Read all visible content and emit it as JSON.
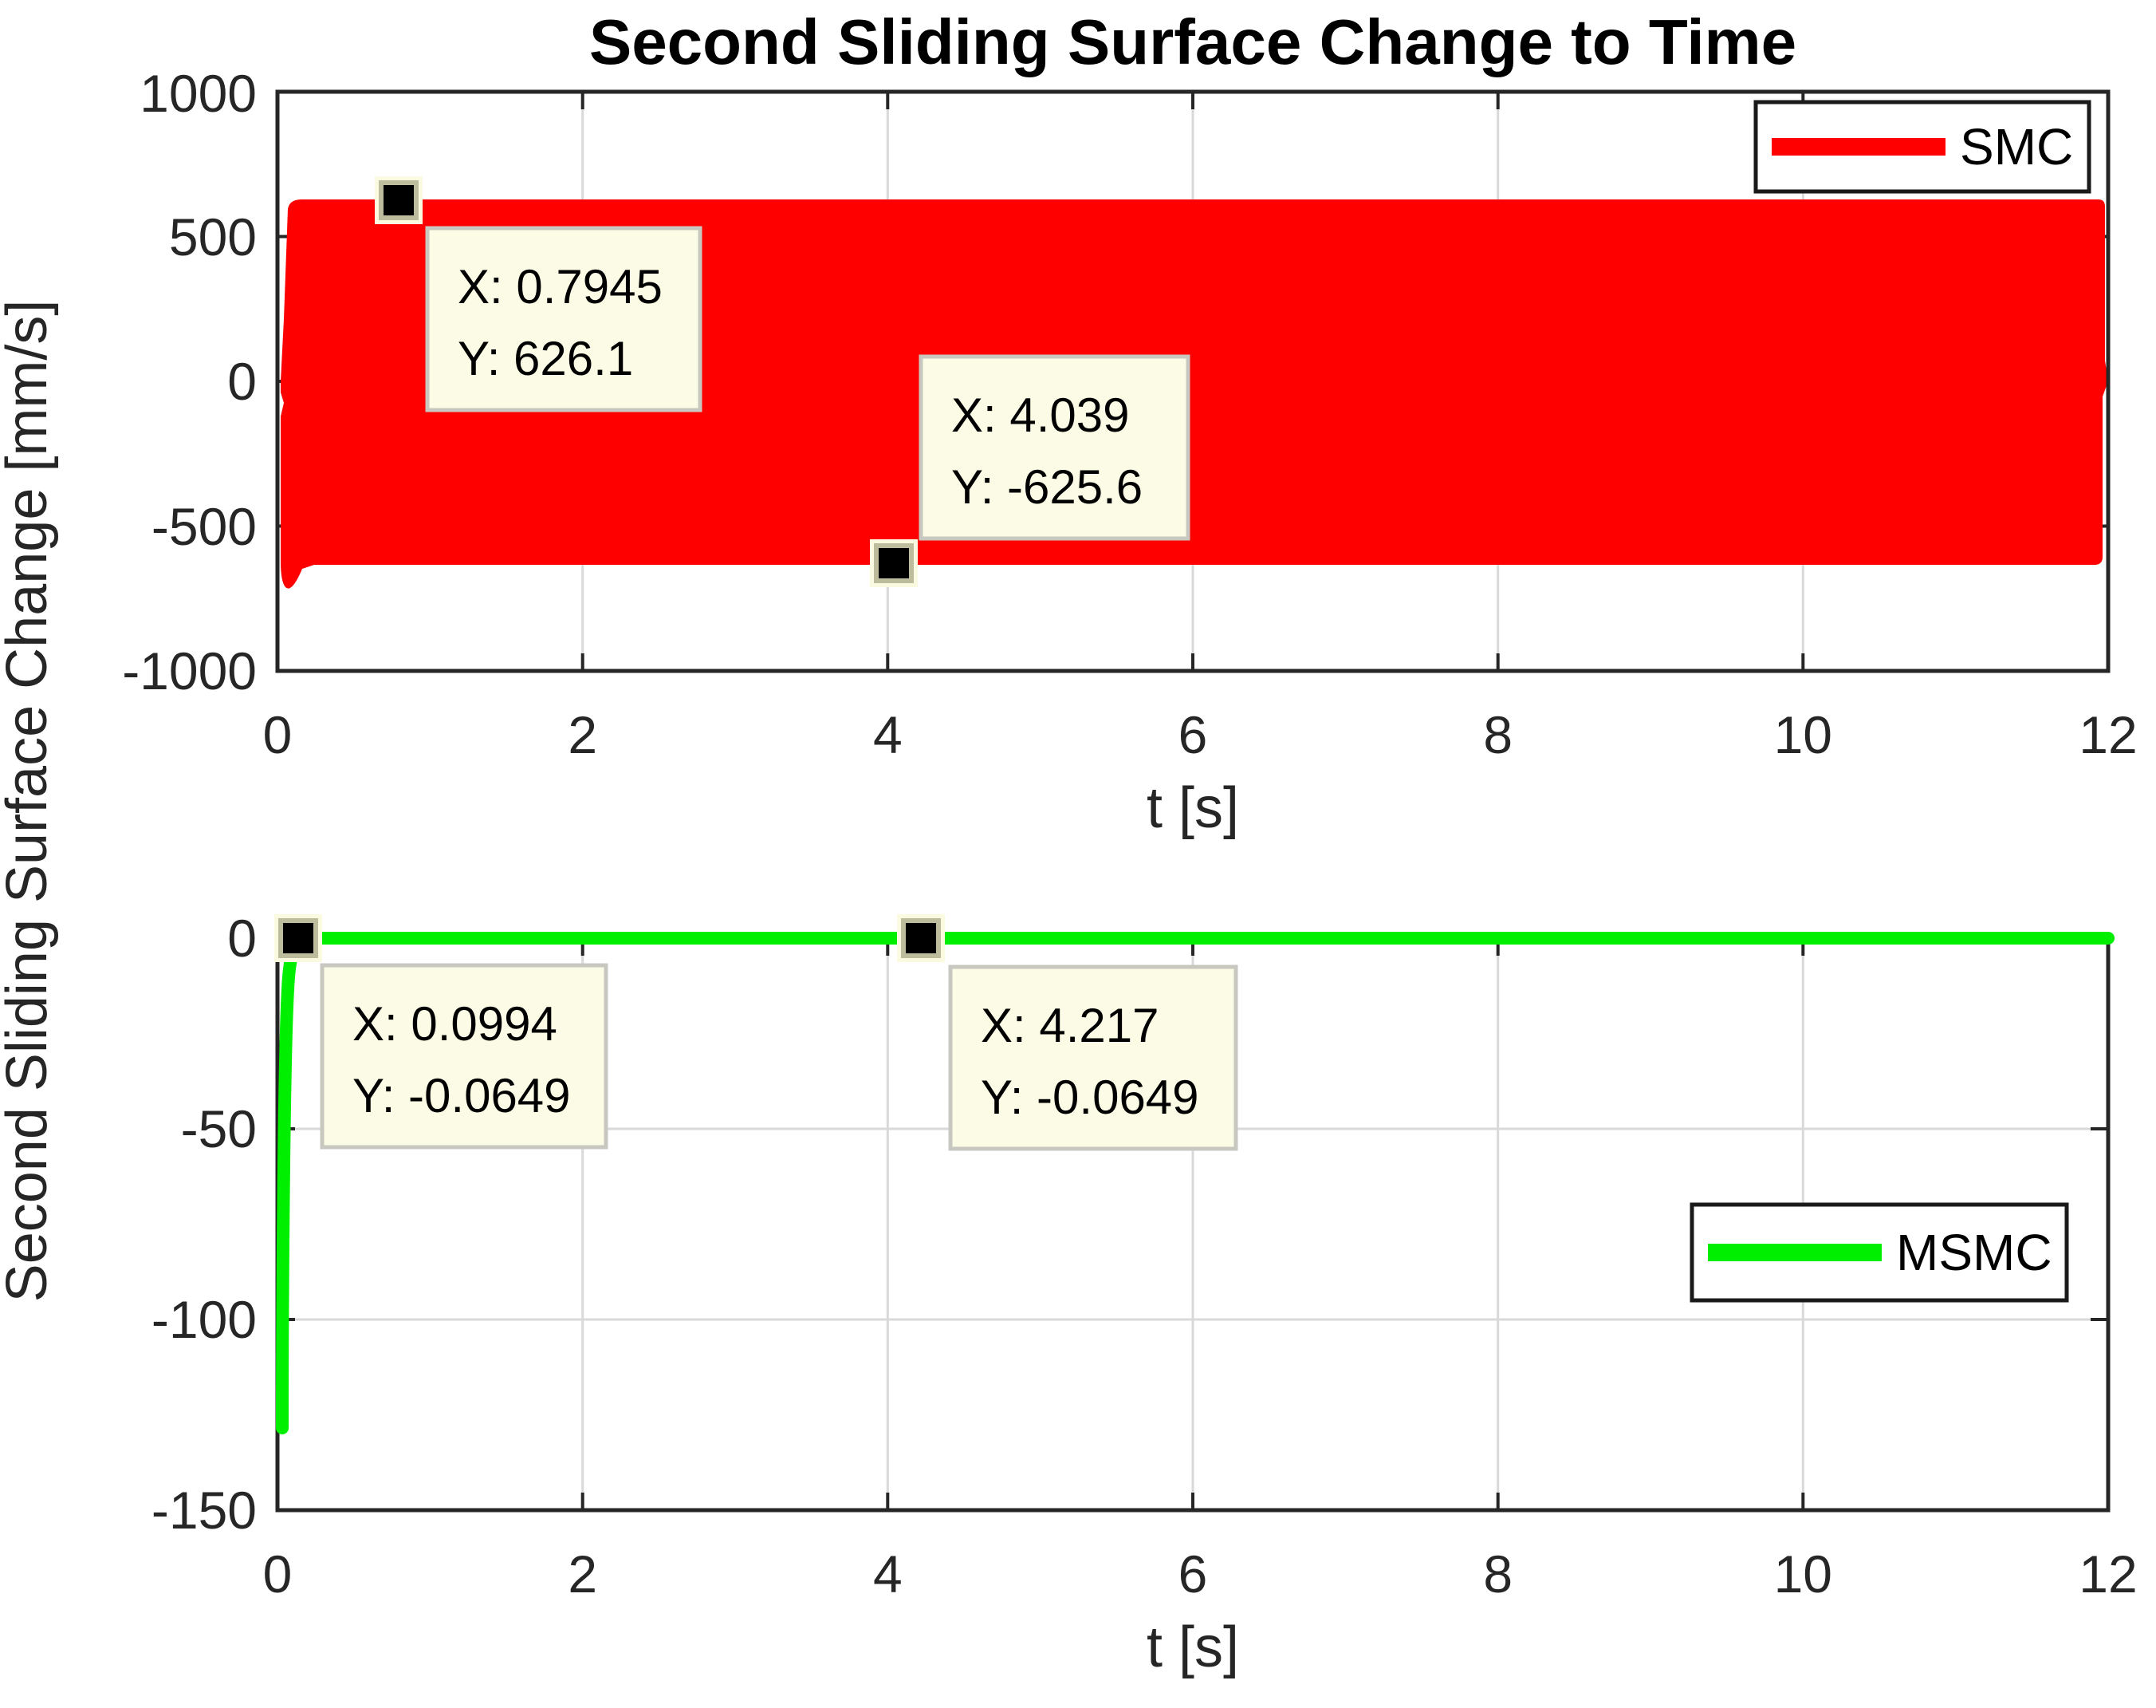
{
  "figure": {
    "title": "Second Sliding Surface Change to Time",
    "shared_ylabel": "Second Sliding Surface Change [mm/s]",
    "background": "#ffffff"
  },
  "colors": {
    "smc_red": "#ff0000",
    "msmc_green": "#00ee00",
    "axis": "#262626",
    "grid": "#d9d9d9",
    "datatip_fill": "#fcfce6",
    "datatip_border": "#c8c8c0",
    "marker_outer": "#fafae1",
    "marker_ring": "#bdbd9e",
    "marker_core": "#000000",
    "legend_border": "#1a1a1a",
    "legend_fill": "#ffffff"
  },
  "chart_data": [
    {
      "type": "area",
      "subplot": "top",
      "title": "Second Sliding Surface Change to Time",
      "xlabel": "t [s]",
      "ylabel": "Second Sliding Surface Change [mm/s]",
      "xlim": [
        0,
        12
      ],
      "ylim": [
        -1000,
        1000
      ],
      "xticks": [
        0,
        2,
        4,
        6,
        8,
        10,
        12
      ],
      "yticks": [
        1000,
        500,
        0,
        -500,
        -1000
      ],
      "grid": true,
      "legend": {
        "entries": [
          "SMC"
        ],
        "position": "northeast",
        "color": "#ff0000"
      },
      "series": [
        {
          "name": "SMC",
          "color": "#ff0000",
          "description": "high-frequency chattering signal filling a band",
          "band_upper": 628,
          "band_lower": -628,
          "start_value": 0,
          "initial_overshoot": -700,
          "x_start": 0.02,
          "x_end": 12,
          "end_value": 0
        }
      ],
      "datatips": [
        {
          "x": 0.7945,
          "y": 626.1
        },
        {
          "x": 4.039,
          "y": -625.6
        }
      ]
    },
    {
      "type": "line",
      "subplot": "bottom",
      "xlabel": "t [s]",
      "ylabel": "Second Sliding Surface Change [mm/s]",
      "xlim": [
        0,
        12
      ],
      "ylim": [
        -150,
        0
      ],
      "xticks": [
        0,
        2,
        4,
        6,
        8,
        10,
        12
      ],
      "yticks": [
        0,
        -50,
        -100,
        -150
      ],
      "grid": true,
      "legend": {
        "entries": [
          "MSMC"
        ],
        "position": "east",
        "color": "#00ee00"
      },
      "series": [
        {
          "name": "MSMC",
          "color": "#00ee00",
          "points": [
            [
              0.02,
              -127
            ],
            [
              0.04,
              -80
            ],
            [
              0.07,
              -20
            ],
            [
              0.0994,
              -0.0649
            ],
            [
              4.217,
              -0.0649
            ],
            [
              12,
              -0.0649
            ]
          ]
        }
      ],
      "datatips": [
        {
          "x": 0.0994,
          "y": -0.0649
        },
        {
          "x": 4.217,
          "y": -0.0649
        }
      ]
    }
  ],
  "labels": {
    "title": "Second Sliding Surface Change to Time",
    "ylabel": "Second Sliding Surface Change [mm/s]",
    "top": {
      "yticks": [
        "1000",
        "500",
        "0",
        "-500",
        "-1000"
      ],
      "xticks": [
        "0",
        "2",
        "4",
        "6",
        "8",
        "10",
        "12"
      ],
      "xlabel": "t [s]",
      "legend": "SMC",
      "datatips": [
        {
          "x_text": "X: 0.7945",
          "y_text": "Y: 626.1"
        },
        {
          "x_text": "X: 4.039",
          "y_text": "Y: -625.6"
        }
      ]
    },
    "bottom": {
      "yticks": [
        "0",
        "-50",
        "-100",
        "-150"
      ],
      "xticks": [
        "0",
        "2",
        "4",
        "6",
        "8",
        "10",
        "12"
      ],
      "xlabel": "t [s]",
      "legend": "MSMC",
      "datatips": [
        {
          "x_text": "X: 0.0994",
          "y_text": "Y: -0.0649"
        },
        {
          "x_text": "X: 4.217",
          "y_text": "Y: -0.0649"
        }
      ]
    }
  }
}
